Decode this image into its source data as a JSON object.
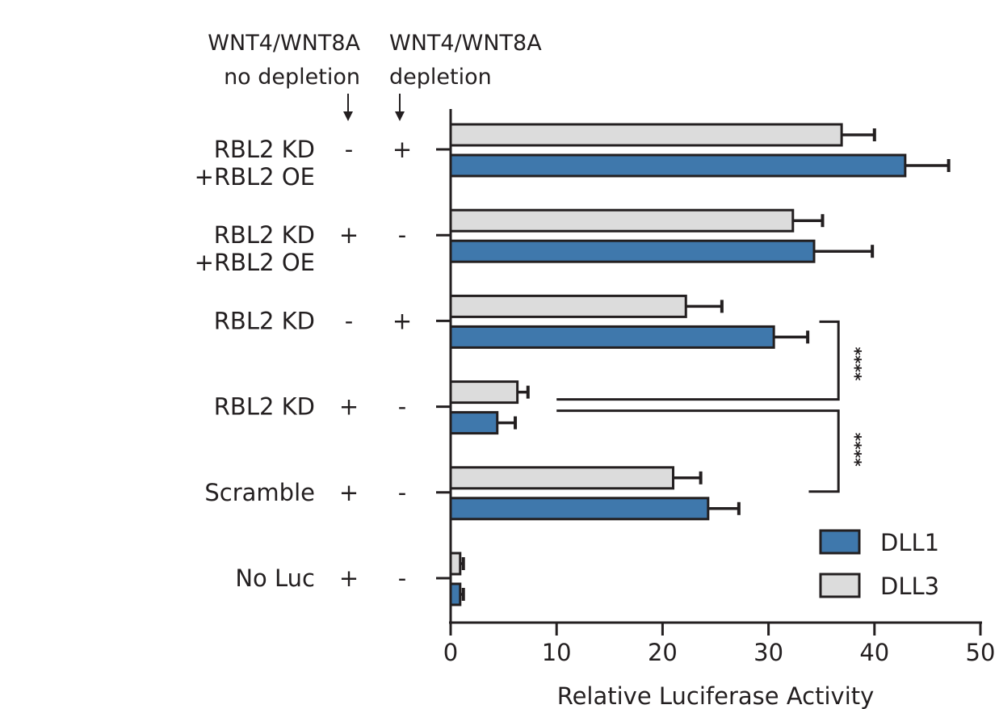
{
  "chart_data": {
    "type": "bar",
    "orientation": "horizontal",
    "xlabel": "Relative Luciferase Activity",
    "xlim": [
      0,
      50
    ],
    "xticks": [
      "0",
      "10",
      "20",
      "30",
      "40",
      "50"
    ],
    "column_headers": [
      {
        "line1": "WNT4/WNT8A",
        "line2": "no depletion"
      },
      {
        "line1": "WNT4/WNT8A",
        "line2": "depletion"
      }
    ],
    "categories": [
      {
        "label_line1": "RBL2 KD",
        "label_line2": "+RBL2 OE",
        "no_depletion": "-",
        "depletion": "+"
      },
      {
        "label_line1": "RBL2 KD",
        "label_line2": "+RBL2 OE",
        "no_depletion": "+",
        "depletion": "-"
      },
      {
        "label_line1": "RBL2 KD",
        "label_line2": "",
        "no_depletion": "-",
        "depletion": "+"
      },
      {
        "label_line1": "RBL2 KD",
        "label_line2": "",
        "no_depletion": "+",
        "depletion": "-"
      },
      {
        "label_line1": "Scramble",
        "label_line2": "",
        "no_depletion": "+",
        "depletion": "-"
      },
      {
        "label_line1": "No Luc",
        "label_line2": "",
        "no_depletion": "+",
        "depletion": "-"
      }
    ],
    "series": [
      {
        "name": "DLL3",
        "color": "#dcdcdc",
        "values": [
          36.9,
          32.3,
          22.2,
          6.3,
          21.0,
          0.9
        ],
        "errors": [
          3.1,
          2.8,
          3.4,
          1.0,
          2.6,
          0.3
        ]
      },
      {
        "name": "DLL1",
        "color": "#3f78ac",
        "values": [
          42.9,
          34.3,
          30.5,
          4.4,
          24.3,
          0.9
        ],
        "errors": [
          4.1,
          5.5,
          3.2,
          1.7,
          2.9,
          0.3
        ]
      }
    ],
    "legend": {
      "placement": "bottom-right",
      "order": [
        "DLL1",
        "DLL3"
      ]
    },
    "annotations": [
      {
        "text": "****",
        "from_category": 2,
        "to_category": 3
      },
      {
        "text": "****",
        "from_category": 3,
        "to_category": 4
      }
    ],
    "grid": false
  }
}
